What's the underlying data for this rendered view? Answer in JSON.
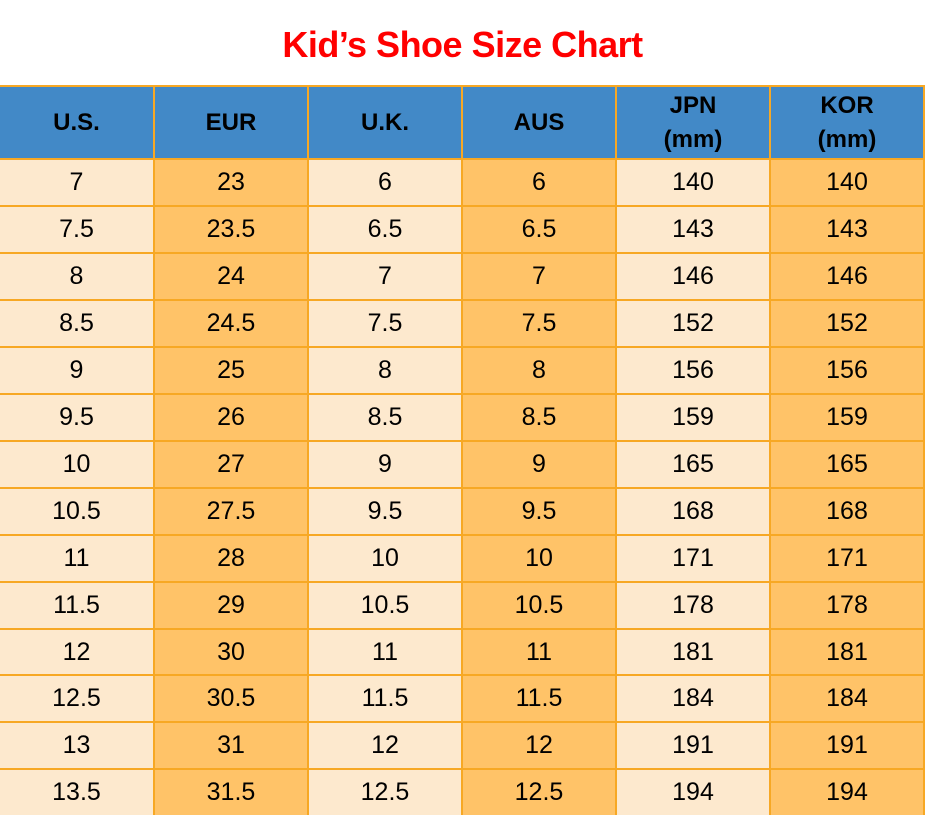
{
  "title": "Kid’s Shoe Size Chart",
  "colors": {
    "title_red": "#FF0000",
    "header_blue": "#4289C7",
    "border_orange": "#F7A824",
    "cell_cream": "#FDE9CE",
    "cell_orange": "#FFC368",
    "text_black": "#000000"
  },
  "chart_data": {
    "type": "table",
    "title": "Kid’s Shoe Size Chart",
    "columns": [
      "U.S.",
      "EUR",
      "U.K.",
      "AUS",
      "JPN (mm)",
      "KOR (mm)"
    ],
    "column_display": [
      "U.S.",
      "EUR",
      "U.K.",
      "AUS",
      "JPN\n(mm)",
      "KOR\n(mm)"
    ],
    "rows": [
      [
        "7",
        "23",
        "6",
        "6",
        "140",
        "140"
      ],
      [
        "7.5",
        "23.5",
        "6.5",
        "6.5",
        "143",
        "143"
      ],
      [
        "8",
        "24",
        "7",
        "7",
        "146",
        "146"
      ],
      [
        "8.5",
        "24.5",
        "7.5",
        "7.5",
        "152",
        "152"
      ],
      [
        "9",
        "25",
        "8",
        "8",
        "156",
        "156"
      ],
      [
        "9.5",
        "26",
        "8.5",
        "8.5",
        "159",
        "159"
      ],
      [
        "10",
        "27",
        "9",
        "9",
        "165",
        "165"
      ],
      [
        "10.5",
        "27.5",
        "9.5",
        "9.5",
        "168",
        "168"
      ],
      [
        "11",
        "28",
        "10",
        "10",
        "171",
        "171"
      ],
      [
        "11.5",
        "29",
        "10.5",
        "10.5",
        "178",
        "178"
      ],
      [
        "12",
        "30",
        "11",
        "11",
        "181",
        "181"
      ],
      [
        "12.5",
        "30.5",
        "11.5",
        "11.5",
        "184",
        "184"
      ],
      [
        "13",
        "31",
        "12",
        "12",
        "191",
        "191"
      ],
      [
        "13.5",
        "31.5",
        "12.5",
        "12.5",
        "194",
        "194"
      ]
    ]
  }
}
